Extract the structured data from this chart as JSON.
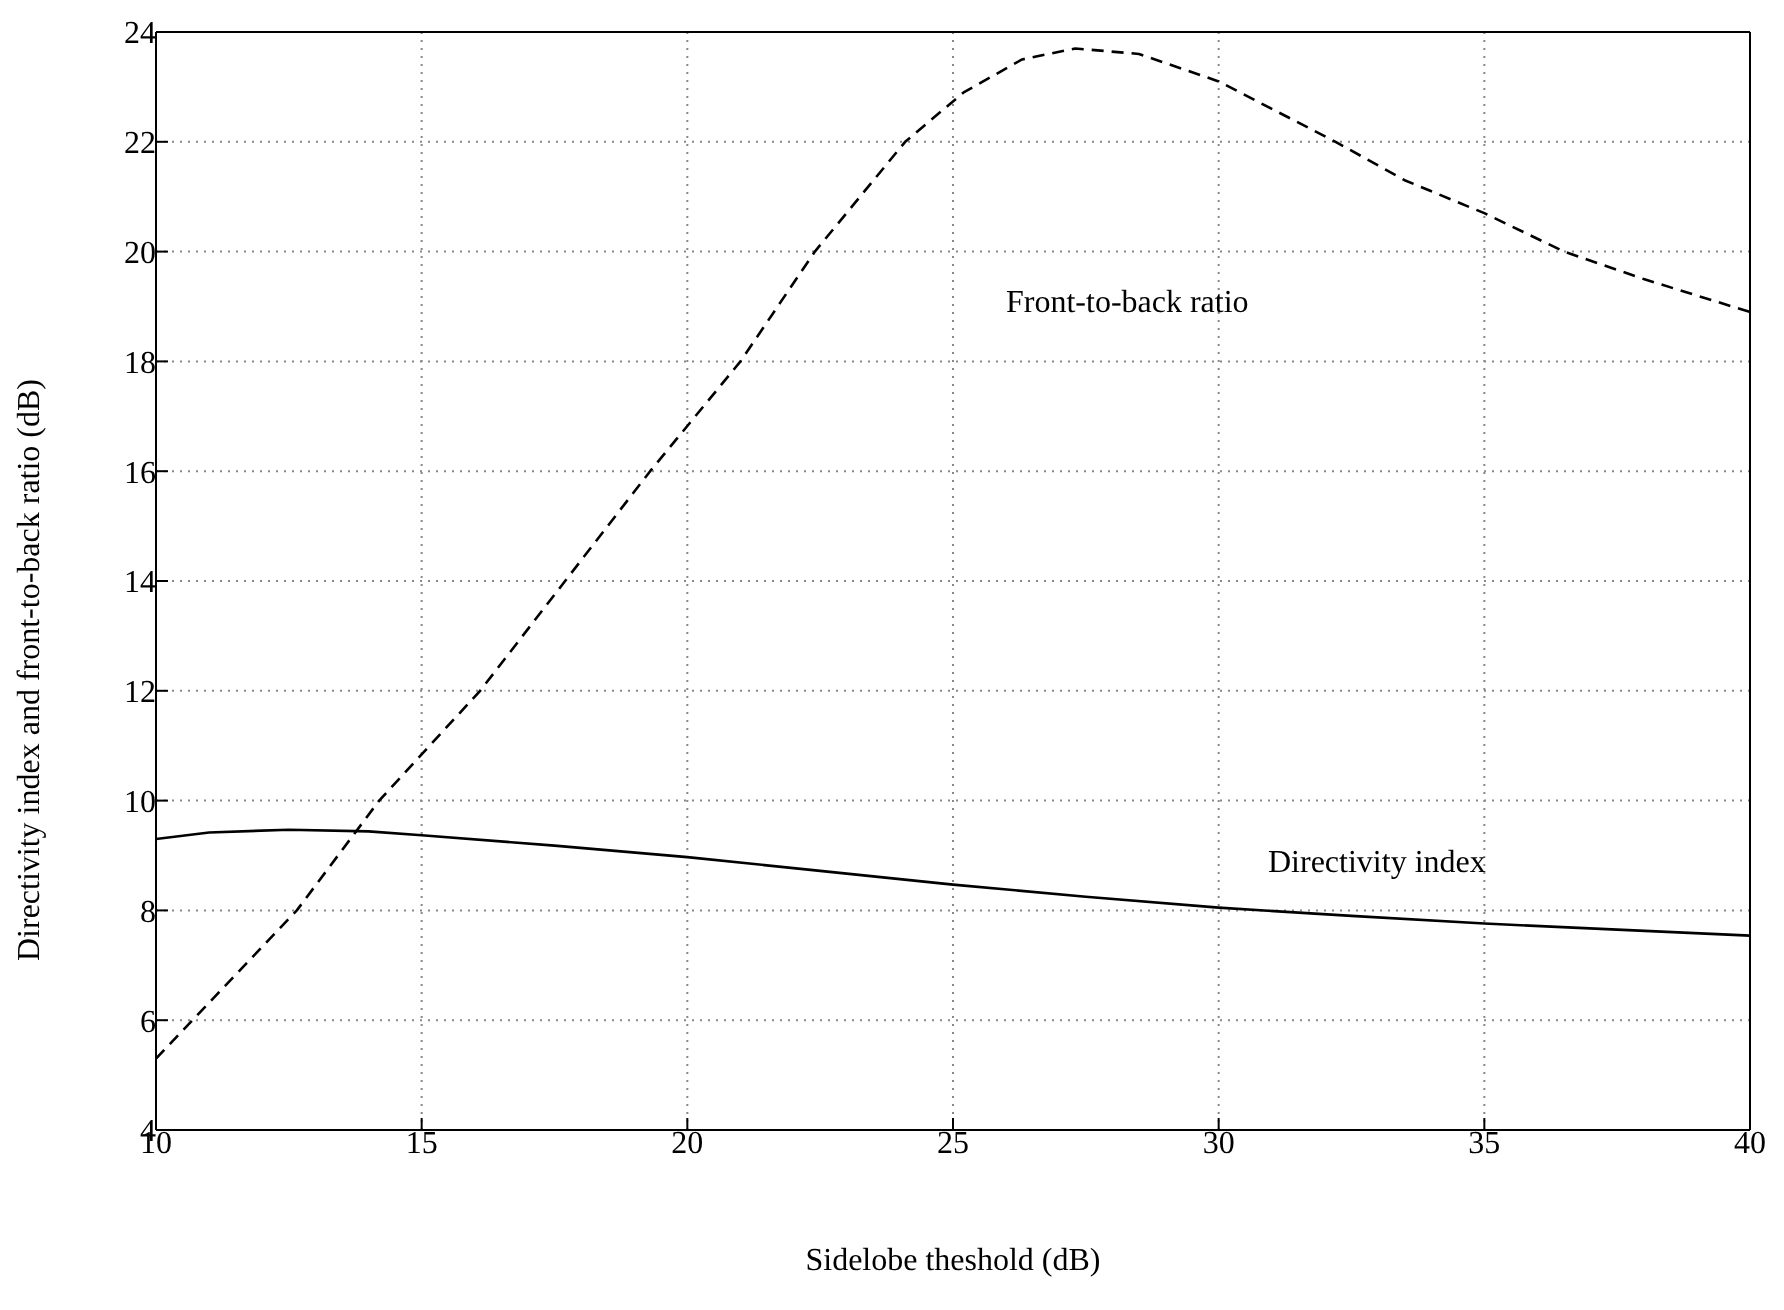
{
  "chart_data": {
    "type": "line",
    "xlabel": "Sidelobe theshold (dB)",
    "ylabel": "Directivity index and front-to-back ratio (dB)",
    "xlim": [
      10,
      40
    ],
    "ylim": [
      4,
      24
    ],
    "xticks": [
      10,
      15,
      20,
      25,
      30,
      35,
      40
    ],
    "yticks": [
      4,
      6,
      8,
      10,
      12,
      14,
      16,
      18,
      20,
      22,
      24
    ],
    "grid": true,
    "marker": "none",
    "series": [
      {
        "color": "#000000",
        "line_style": "dashed",
        "x": [
          10,
          12.65,
          14.2,
          16.1,
          17.7,
          19.3,
          21,
          22.4,
          24.1,
          25.2,
          26.3,
          27.3,
          28.5,
          30,
          31,
          32.2,
          33.5,
          35,
          36.5,
          38,
          40
        ],
        "values": [
          5.3,
          8,
          10,
          12,
          14,
          16,
          18,
          20,
          22,
          22.9,
          23.5,
          23.7,
          23.6,
          23.1,
          22.6,
          22,
          21.3,
          20.7,
          20,
          19.5,
          18.9
        ]
      },
      {
        "color": "#000000",
        "line_style": "solid",
        "x": [
          10,
          11,
          12.5,
          14,
          15,
          17.5,
          20,
          22.5,
          25,
          27.5,
          30,
          32.5,
          35,
          37.5,
          40
        ],
        "values": [
          9.3,
          9.42,
          9.47,
          9.44,
          9.37,
          9.18,
          8.97,
          8.72,
          8.47,
          8.25,
          8.05,
          7.9,
          7.76,
          7.65,
          7.54
        ]
      }
    ],
    "annotations": [
      "Front-to-back ratio",
      "Directivity index"
    ]
  }
}
